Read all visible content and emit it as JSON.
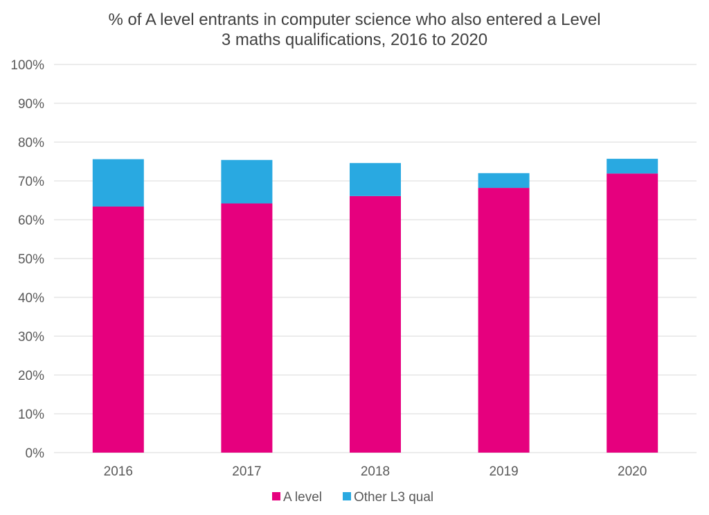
{
  "chart_data": {
    "type": "bar",
    "stacked": true,
    "title_lines": [
      "% of A level entrants in computer science who also entered a Level",
      "3 maths qualifications, 2016 to 2020"
    ],
    "categories": [
      "2016",
      "2017",
      "2018",
      "2019",
      "2020"
    ],
    "series": [
      {
        "name": "A level",
        "color": "#E6007E",
        "values": [
          63.4,
          64.2,
          66.1,
          68.2,
          71.9
        ]
      },
      {
        "name": "Other L3 qual",
        "color": "#29A9E1",
        "values": [
          12.2,
          11.2,
          8.5,
          3.8,
          3.8
        ]
      }
    ],
    "ylim": [
      0,
      100
    ],
    "yticks": [
      "0%",
      "10%",
      "20%",
      "30%",
      "40%",
      "50%",
      "60%",
      "70%",
      "80%",
      "90%",
      "100%"
    ],
    "xlabel": "",
    "ylabel": "",
    "grid": true,
    "legend_position": "bottom",
    "gridline_color": "#D9D9D9"
  }
}
